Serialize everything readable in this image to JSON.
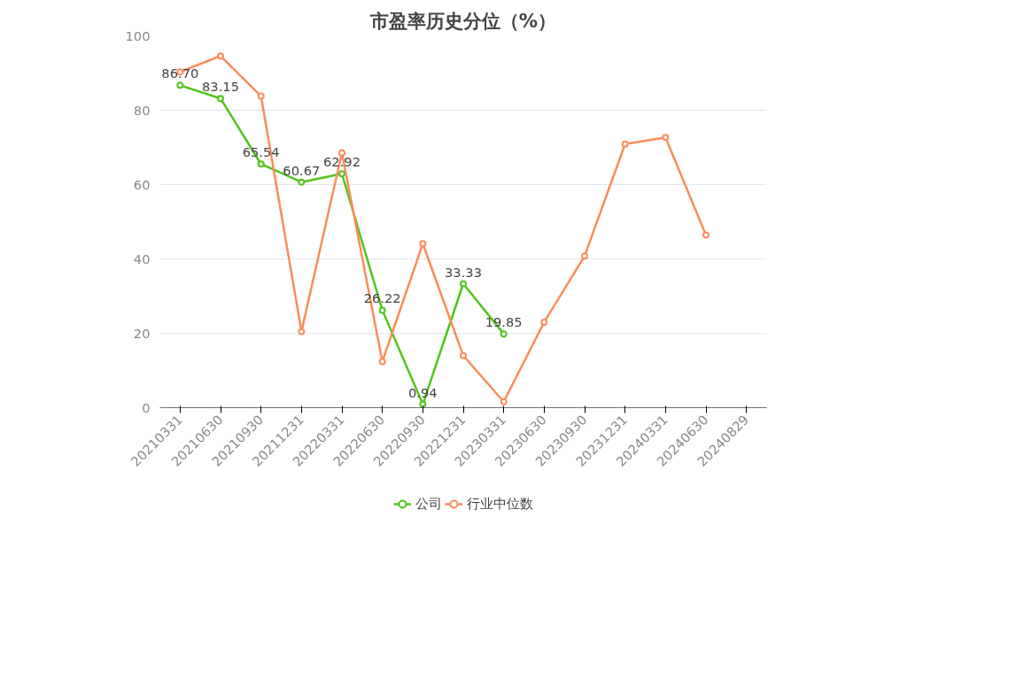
{
  "chart_data": {
    "type": "line",
    "title": "市盈率历史分位（%）",
    "categories": [
      "20210331",
      "20210630",
      "20210930",
      "20211231",
      "20220331",
      "20220630",
      "20220930",
      "20221231",
      "20230331",
      "20230630",
      "20230930",
      "20231231",
      "20240331",
      "20240630",
      "20240829"
    ],
    "series": [
      {
        "name": "公司",
        "color": "#52c41a",
        "values": [
          86.7,
          83.15,
          65.54,
          60.67,
          62.92,
          26.22,
          0.94,
          33.33,
          19.85,
          null,
          null,
          null,
          null,
          null,
          null
        ],
        "value_labels": [
          "86.70",
          "83.15",
          "65.54",
          "60.67",
          "62.92",
          "26.22",
          "0.94",
          "33.33",
          "19.85",
          null,
          null,
          null,
          null,
          null,
          null
        ]
      },
      {
        "name": "行业中位数",
        "color": "#fa8c5a",
        "values": [
          90.3,
          94.6,
          83.8,
          20.5,
          68.5,
          12.4,
          44.1,
          14.0,
          1.6,
          23.0,
          40.8,
          70.9,
          72.7,
          46.4,
          null
        ]
      }
    ],
    "ylim": [
      0,
      100
    ],
    "yticks": [
      0,
      20,
      40,
      60,
      80,
      100
    ],
    "grid": "y",
    "legend": "bottom",
    "marker": "circle",
    "line_style": "solid"
  }
}
